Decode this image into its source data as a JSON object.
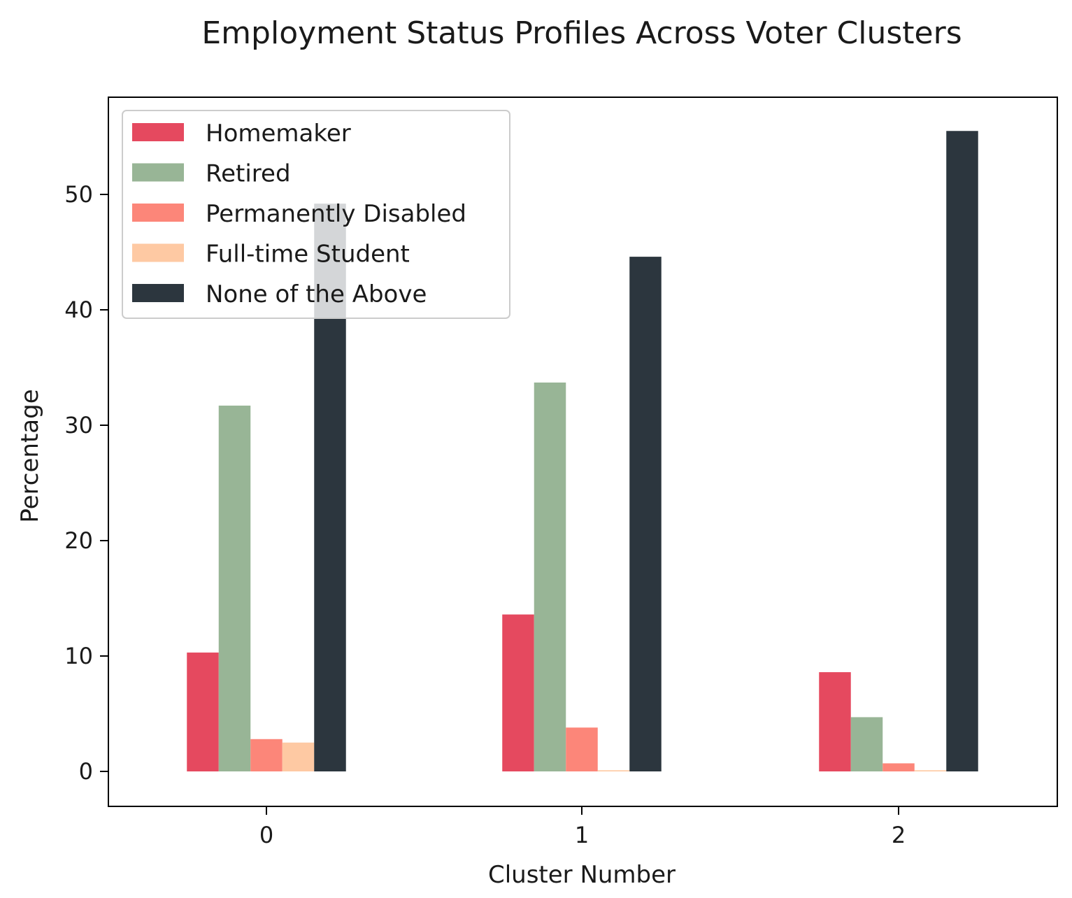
{
  "chart_data": {
    "type": "bar",
    "title": "Employment Status Profiles Across Voter Clusters",
    "xlabel": "Cluster Number",
    "ylabel": "Percentage",
    "categories": [
      "0",
      "1",
      "2"
    ],
    "ylim": [
      -3,
      58
    ],
    "yticks": [
      "0",
      "10",
      "20",
      "30",
      "40",
      "50"
    ],
    "grid": false,
    "legend_position": "upper-left",
    "series": [
      {
        "name": "Homemaker",
        "color": "#e5495f",
        "values": [
          10.3,
          13.6,
          8.6
        ]
      },
      {
        "name": "Retired",
        "color": "#98b596",
        "values": [
          31.7,
          33.7,
          4.7
        ]
      },
      {
        "name": "Permanently Disabled",
        "color": "#fc8679",
        "values": [
          2.8,
          3.8,
          0.7
        ]
      },
      {
        "name": "Full-time Student",
        "color": "#fec9a3",
        "values": [
          2.5,
          0.1,
          0.1
        ]
      },
      {
        "name": "None of the Above",
        "color": "#2c363e",
        "values": [
          49.2,
          44.6,
          55.5
        ]
      }
    ]
  }
}
